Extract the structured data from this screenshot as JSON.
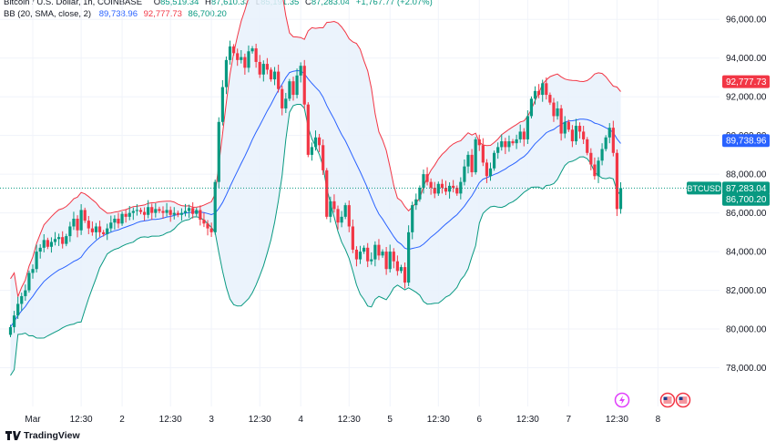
{
  "header": {
    "title": "Bitcoin / U.S. Dollar, 1h, COINBASE",
    "o_label": "O",
    "o_value": "85,519.34",
    "h_label": "H",
    "h_value": "87,610.33",
    "l_label": "L",
    "l_value": "85,191.35",
    "c_label": "C",
    "c_value": "87,283.04",
    "change": "+1,767.77 (+2.07%)",
    "bb_label": "BB (20, SMA, close, 2)",
    "bb_basis": "89,738.96",
    "bb_upper": "92,777.73",
    "bb_lower": "86,700.20"
  },
  "footer": {
    "brand": "TradingView"
  },
  "colors": {
    "up": "#089981",
    "down": "#f23645",
    "basis": "#2962ff",
    "upper": "#f23645",
    "lower": "#089981",
    "band_fill": "#e8f1fb",
    "axis_text": "#131722",
    "grid": "#f0f3fa"
  },
  "chart_data": {
    "type": "candlestick",
    "symbol": "BTCUSD",
    "ylim": [
      76000,
      97000
    ],
    "y_ticks": [
      78000,
      80000,
      82000,
      84000,
      86000,
      88000,
      90000,
      92000,
      94000,
      96000
    ],
    "y_tick_labels": [
      "78,000.00",
      "80,000.00",
      "82,000.00",
      "84,000.00",
      "86,000.00",
      "88,000.00",
      "90,000.00",
      "92,000.00",
      "94,000.00",
      "96,000.00"
    ],
    "x_ticks": [
      {
        "label": "Mar",
        "i": 6
      },
      {
        "label": "12:30",
        "i": 19
      },
      {
        "label": "2",
        "i": 30
      },
      {
        "label": "12:30",
        "i": 43
      },
      {
        "label": "3",
        "i": 54
      },
      {
        "label": "12:30",
        "i": 67
      },
      {
        "label": "4",
        "i": 78
      },
      {
        "label": "12:30",
        "i": 91
      },
      {
        "label": "5",
        "i": 102
      },
      {
        "label": "12:30",
        "i": 115
      },
      {
        "label": "6",
        "i": 126
      },
      {
        "label": "12:30",
        "i": 139
      },
      {
        "label": "7",
        "i": 150
      },
      {
        "label": "12:30",
        "i": 163
      },
      {
        "label": "8",
        "i": 174
      }
    ],
    "price_labels": [
      {
        "name": "bb-upper",
        "text": "92,777.73",
        "value": 92777.73,
        "color": "#f23645"
      },
      {
        "name": "bb-basis",
        "text": "89,738.96",
        "value": 89738.96,
        "color": "#2962ff"
      },
      {
        "name": "last-price",
        "symbol": "BTCUSD",
        "text": "87,283.04",
        "value": 87283.04,
        "color": "#089981"
      },
      {
        "name": "bb-lower",
        "text": "86,700.20",
        "value": 86700.2,
        "color": "#089981"
      }
    ],
    "last_price": 87283.04,
    "closes": [
      80100,
      80700,
      81300,
      81700,
      82000,
      82900,
      83100,
      84000,
      84200,
      84600,
      84250,
      84500,
      84650,
      84750,
      84400,
      84800,
      85300,
      85700,
      85100,
      86150,
      85600,
      85200,
      85000,
      85300,
      85000,
      84900,
      85200,
      85500,
      85700,
      85450,
      85950,
      85800,
      86000,
      86100,
      86150,
      86050,
      85900,
      86300,
      86000,
      86200,
      86100,
      86000,
      86150,
      85900,
      86000,
      85900,
      86000,
      86100,
      86250,
      85950,
      86150,
      85650,
      85450,
      85200,
      85000,
      87600,
      90700,
      92500,
      93900,
      94600,
      94250,
      93900,
      94050,
      93500,
      94350,
      94500,
      93800,
      93150,
      93700,
      93400,
      92900,
      93300,
      92400,
      91400,
      91900,
      92800,
      92100,
      93100,
      93600,
      91600,
      89000,
      89400,
      89900,
      89500,
      88200,
      85800,
      86600,
      86200,
      85500,
      85800,
      86400,
      85300,
      84100,
      83600,
      84000,
      84200,
      83500,
      83600,
      84350,
      83800,
      84000,
      83100,
      84000,
      83500,
      83000,
      83200,
      82400,
      85000,
      86400,
      86700,
      87300,
      88000,
      87600,
      87300,
      87000,
      87500,
      87300,
      87100,
      87400,
      87300,
      87000,
      87600,
      88400,
      89000,
      88100,
      89800,
      89500,
      88600,
      87900,
      88300,
      89100,
      89400,
      89700,
      89400,
      89700,
      89600,
      89800,
      90200,
      89800,
      91000,
      91900,
      92300,
      92100,
      92700,
      92100,
      91700,
      91000,
      91400,
      90100,
      90700,
      90300,
      89700,
      90500,
      90200,
      89800,
      89100,
      88500,
      87900,
      88700,
      89300,
      89900,
      90400,
      89100,
      86200,
      87283
    ]
  }
}
